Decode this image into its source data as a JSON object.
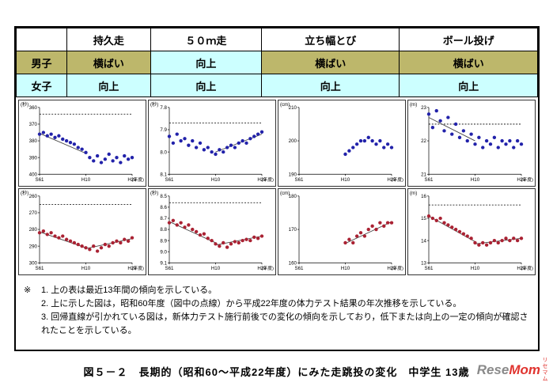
{
  "table": {
    "corner": "",
    "col_headers": [
      "持久走",
      "５０ｍ走",
      "立ち幅とび",
      "ボール投げ"
    ],
    "rows": [
      {
        "label": "男子",
        "color": "#bdb76b",
        "values": [
          "横ばい",
          "向上",
          "横ばい",
          "横ばい"
        ]
      },
      {
        "label": "女子",
        "color": "#ccffff",
        "values": [
          "向上",
          "向上",
          "向上",
          "向上"
        ]
      }
    ],
    "status_colors": {
      "横ばい": "#bdb76b",
      "向上": "#ccffff"
    }
  },
  "chart_data": [
    {
      "type": "scatter",
      "name": "持久走 男子",
      "unit": "(秒)",
      "color": "#2222aa",
      "inverted": true,
      "ymin": 360,
      "ymax": 400,
      "yticks": [
        "360",
        "370",
        "380",
        "390",
        "400"
      ],
      "xmax": 24,
      "xticks": [
        {
          "x": 0,
          "label": "S61"
        },
        {
          "x": 12,
          "label": "H10"
        },
        {
          "x": 24,
          "label": "H22"
        }
      ],
      "xlabel": "(年度)",
      "baseline": 364,
      "trends": [
        [
          0,
          375.5,
          12,
          387.5
        ]
      ],
      "points": [
        [
          0,
          376
        ],
        [
          1,
          375
        ],
        [
          2,
          377
        ],
        [
          3,
          376
        ],
        [
          4,
          378
        ],
        [
          5,
          377
        ],
        [
          6,
          379
        ],
        [
          7,
          380
        ],
        [
          8,
          381
        ],
        [
          9,
          382
        ],
        [
          10,
          384
        ],
        [
          11,
          385
        ],
        [
          12,
          387
        ],
        [
          13,
          390
        ],
        [
          14,
          392
        ],
        [
          15,
          389
        ],
        [
          16,
          393
        ],
        [
          17,
          391
        ],
        [
          18,
          388
        ],
        [
          19,
          392
        ],
        [
          20,
          390
        ],
        [
          21,
          393
        ],
        [
          22,
          389
        ],
        [
          23,
          391
        ],
        [
          24,
          390
        ]
      ]
    },
    {
      "type": "scatter",
      "name": "５０ｍ走 男子",
      "unit": "(秒)",
      "color": "#2222aa",
      "inverted": true,
      "ymin": 7.8,
      "ymax": 8.1,
      "yticks": [
        "7.8",
        "7.9",
        "8.0",
        "8.1"
      ],
      "xmax": 24,
      "xticks": [
        {
          "x": 0,
          "label": "S61"
        },
        {
          "x": 12,
          "label": "H10"
        },
        {
          "x": 24,
          "label": "H22"
        }
      ],
      "xlabel": "(年度)",
      "baseline": 7.87,
      "trends": [
        [
          12,
          8.0,
          24,
          7.92
        ]
      ],
      "points": [
        [
          0,
          7.93
        ],
        [
          1,
          7.96
        ],
        [
          2,
          7.92
        ],
        [
          3,
          7.95
        ],
        [
          4,
          7.94
        ],
        [
          5,
          7.97
        ],
        [
          6,
          7.95
        ],
        [
          7,
          7.98
        ],
        [
          8,
          7.96
        ],
        [
          9,
          7.99
        ],
        [
          10,
          7.98
        ],
        [
          11,
          8.0
        ],
        [
          12,
          8.01
        ],
        [
          13,
          7.99
        ],
        [
          14,
          8.0
        ],
        [
          15,
          7.98
        ],
        [
          16,
          7.97
        ],
        [
          17,
          7.98
        ],
        [
          18,
          7.96
        ],
        [
          19,
          7.95
        ],
        [
          20,
          7.96
        ],
        [
          21,
          7.94
        ],
        [
          22,
          7.93
        ],
        [
          23,
          7.92
        ],
        [
          24,
          7.91
        ]
      ]
    },
    {
      "type": "scatter",
      "name": "立ち幅とび 男子",
      "unit": "(cm)",
      "color": "#2222aa",
      "inverted": false,
      "ymin": 190,
      "ymax": 210,
      "yticks": [
        "190",
        "200",
        "210"
      ],
      "xmax": 24,
      "xticks": [
        {
          "x": 0,
          "label": "S61"
        },
        {
          "x": 12,
          "label": "H10"
        },
        {
          "x": 24,
          "label": "H22"
        }
      ],
      "xlabel": "(年度)",
      "baseline": null,
      "trends": [],
      "points": [
        [
          12,
          196
        ],
        [
          13,
          197
        ],
        [
          14,
          198
        ],
        [
          15,
          199
        ],
        [
          16,
          200
        ],
        [
          17,
          200
        ],
        [
          18,
          201
        ],
        [
          19,
          200
        ],
        [
          20,
          199
        ],
        [
          21,
          200
        ],
        [
          22,
          198
        ],
        [
          23,
          199
        ],
        [
          24,
          198
        ]
      ]
    },
    {
      "type": "scatter",
      "name": "ボール投げ 男子",
      "unit": "(m)",
      "color": "#2222aa",
      "inverted": false,
      "ymin": 21,
      "ymax": 23,
      "yticks": [
        "21",
        "22",
        "23"
      ],
      "xmax": 24,
      "xticks": [
        {
          "x": 0,
          "label": "S61"
        },
        {
          "x": 12,
          "label": "H10"
        },
        {
          "x": 24,
          "label": "H22"
        }
      ],
      "xlabel": "(年度)",
      "baseline": 22.5,
      "trends": [
        [
          0,
          22.7,
          12,
          22.0
        ]
      ],
      "points": [
        [
          0,
          22.8
        ],
        [
          1,
          22.4
        ],
        [
          2,
          22.9
        ],
        [
          3,
          22.6
        ],
        [
          4,
          22.3
        ],
        [
          5,
          22.7
        ],
        [
          6,
          22.2
        ],
        [
          7,
          22.5
        ],
        [
          8,
          22.1
        ],
        [
          9,
          22.3
        ],
        [
          10,
          22.0
        ],
        [
          11,
          22.2
        ],
        [
          12,
          21.9
        ],
        [
          13,
          22.1
        ],
        [
          14,
          21.8
        ],
        [
          15,
          22.0
        ],
        [
          16,
          21.9
        ],
        [
          17,
          22.1
        ],
        [
          18,
          21.8
        ],
        [
          19,
          22.0
        ],
        [
          20,
          21.9
        ],
        [
          21,
          22.0
        ],
        [
          22,
          21.8
        ],
        [
          23,
          22.0
        ],
        [
          24,
          21.9
        ]
      ]
    },
    {
      "type": "scatter",
      "name": "持久走 女子",
      "unit": "(秒)",
      "color": "#aa2233",
      "inverted": true,
      "ymin": 260,
      "ymax": 300,
      "yticks": [
        "260",
        "270",
        "280",
        "290",
        "300"
      ],
      "xmax": 24,
      "xticks": [
        {
          "x": 0,
          "label": "S61"
        },
        {
          "x": 12,
          "label": "H10"
        },
        {
          "x": 24,
          "label": "H22"
        }
      ],
      "xlabel": "(年度)",
      "baseline": 265,
      "trends": [
        [
          0,
          281.5,
          12,
          291
        ],
        [
          12,
          291.5,
          24,
          285.5
        ]
      ],
      "points": [
        [
          0,
          282
        ],
        [
          1,
          281
        ],
        [
          2,
          283
        ],
        [
          3,
          282
        ],
        [
          4,
          284
        ],
        [
          5,
          285
        ],
        [
          6,
          284
        ],
        [
          7,
          286
        ],
        [
          8,
          287
        ],
        [
          9,
          288
        ],
        [
          10,
          289
        ],
        [
          11,
          290
        ],
        [
          12,
          291
        ],
        [
          13,
          292
        ],
        [
          14,
          290
        ],
        [
          15,
          293
        ],
        [
          16,
          291
        ],
        [
          17,
          289
        ],
        [
          18,
          290
        ],
        [
          19,
          288
        ],
        [
          20,
          287
        ],
        [
          21,
          288
        ],
        [
          22,
          286
        ],
        [
          23,
          287
        ],
        [
          24,
          285
        ]
      ]
    },
    {
      "type": "scatter",
      "name": "５０ｍ走 女子",
      "unit": "(秒)",
      "color": "#aa2233",
      "inverted": true,
      "ymin": 8.5,
      "ymax": 9.1,
      "yticks": [
        "8.5",
        "8.6",
        "8.7",
        "8.8",
        "8.9",
        "9.0",
        "9.1"
      ],
      "xmax": 24,
      "xticks": [
        {
          "x": 0,
          "label": "S61"
        },
        {
          "x": 12,
          "label": "H10"
        },
        {
          "x": 24,
          "label": "H22"
        }
      ],
      "xlabel": "(年度)",
      "baseline": 8.56,
      "trends": [
        [
          0,
          8.73,
          12,
          8.92
        ],
        [
          12,
          8.94,
          24,
          8.86
        ]
      ],
      "points": [
        [
          0,
          8.74
        ],
        [
          1,
          8.72
        ],
        [
          2,
          8.76
        ],
        [
          3,
          8.74
        ],
        [
          4,
          8.78
        ],
        [
          5,
          8.76
        ],
        [
          6,
          8.8
        ],
        [
          7,
          8.82
        ],
        [
          8,
          8.85
        ],
        [
          9,
          8.84
        ],
        [
          10,
          8.88
        ],
        [
          11,
          8.9
        ],
        [
          12,
          8.93
        ],
        [
          13,
          8.95
        ],
        [
          14,
          8.92
        ],
        [
          15,
          8.96
        ],
        [
          16,
          8.93
        ],
        [
          17,
          8.91
        ],
        [
          18,
          8.92
        ],
        [
          19,
          8.9
        ],
        [
          20,
          8.89
        ],
        [
          21,
          8.9
        ],
        [
          22,
          8.87
        ],
        [
          23,
          8.88
        ],
        [
          24,
          8.86
        ]
      ]
    },
    {
      "type": "scatter",
      "name": "立ち幅とび 女子",
      "unit": "(cm)",
      "color": "#aa2233",
      "inverted": false,
      "ymin": 160,
      "ymax": 180,
      "yticks": [
        "160",
        "170",
        "180"
      ],
      "xmax": 24,
      "xticks": [
        {
          "x": 0,
          "label": "S61"
        },
        {
          "x": 12,
          "label": "H10"
        },
        {
          "x": 24,
          "label": "H22"
        }
      ],
      "xlabel": "(年度)",
      "baseline": null,
      "trends": [
        [
          12,
          165.8,
          24,
          172.3
        ]
      ],
      "points": [
        [
          12,
          166
        ],
        [
          13,
          167
        ],
        [
          14,
          166
        ],
        [
          15,
          168
        ],
        [
          16,
          169
        ],
        [
          17,
          168
        ],
        [
          18,
          170
        ],
        [
          19,
          171
        ],
        [
          20,
          170
        ],
        [
          21,
          172
        ],
        [
          22,
          171
        ],
        [
          23,
          172
        ],
        [
          24,
          172
        ]
      ]
    },
    {
      "type": "scatter",
      "name": "ボール投げ 女子",
      "unit": "(m)",
      "color": "#aa2233",
      "inverted": false,
      "ymin": 13,
      "ymax": 16,
      "yticks": [
        "13",
        "14",
        "15",
        "16"
      ],
      "xmax": 24,
      "xticks": [
        {
          "x": 0,
          "label": "S61"
        },
        {
          "x": 12,
          "label": "H10"
        },
        {
          "x": 24,
          "label": "H22"
        }
      ],
      "xlabel": "(年度)",
      "baseline": 15.6,
      "trends": [
        [
          0,
          15.1,
          12,
          13.95
        ],
        [
          12,
          13.85,
          24,
          14.1
        ]
      ],
      "points": [
        [
          0,
          15.1
        ],
        [
          1,
          15.0
        ],
        [
          2,
          14.9
        ],
        [
          3,
          15.0
        ],
        [
          4,
          14.8
        ],
        [
          5,
          14.7
        ],
        [
          6,
          14.6
        ],
        [
          7,
          14.5
        ],
        [
          8,
          14.4
        ],
        [
          9,
          14.3
        ],
        [
          10,
          14.2
        ],
        [
          11,
          14.1
        ],
        [
          12,
          13.9
        ],
        [
          13,
          13.8
        ],
        [
          14,
          13.9
        ],
        [
          15,
          13.8
        ],
        [
          16,
          13.9
        ],
        [
          17,
          14.0
        ],
        [
          18,
          13.9
        ],
        [
          19,
          14.0
        ],
        [
          20,
          14.1
        ],
        [
          21,
          14.0
        ],
        [
          22,
          14.1
        ],
        [
          23,
          14.0
        ],
        [
          24,
          14.1
        ]
      ]
    }
  ],
  "notes": {
    "marker": "※",
    "items": [
      "1. 上の表は最近13年間の傾向を示している。",
      "2. 上に示した図は，昭和60年度（図中の点線）から平成22年度の体力テスト結果の年次推移を示している。",
      "3. 回帰直線が引かれている図は，新体力テスト施行前後での変化の傾向を示しており，低下または向上の一定の傾向が確認されたことを示している。"
    ]
  },
  "caption": "図５－２　長期的（昭和60～平成22年度）にみた走跳投の変化　中学生 13歳",
  "watermark": {
    "main_gray": "Rese",
    "main_red": "Mom",
    "sub": "リセマム"
  }
}
